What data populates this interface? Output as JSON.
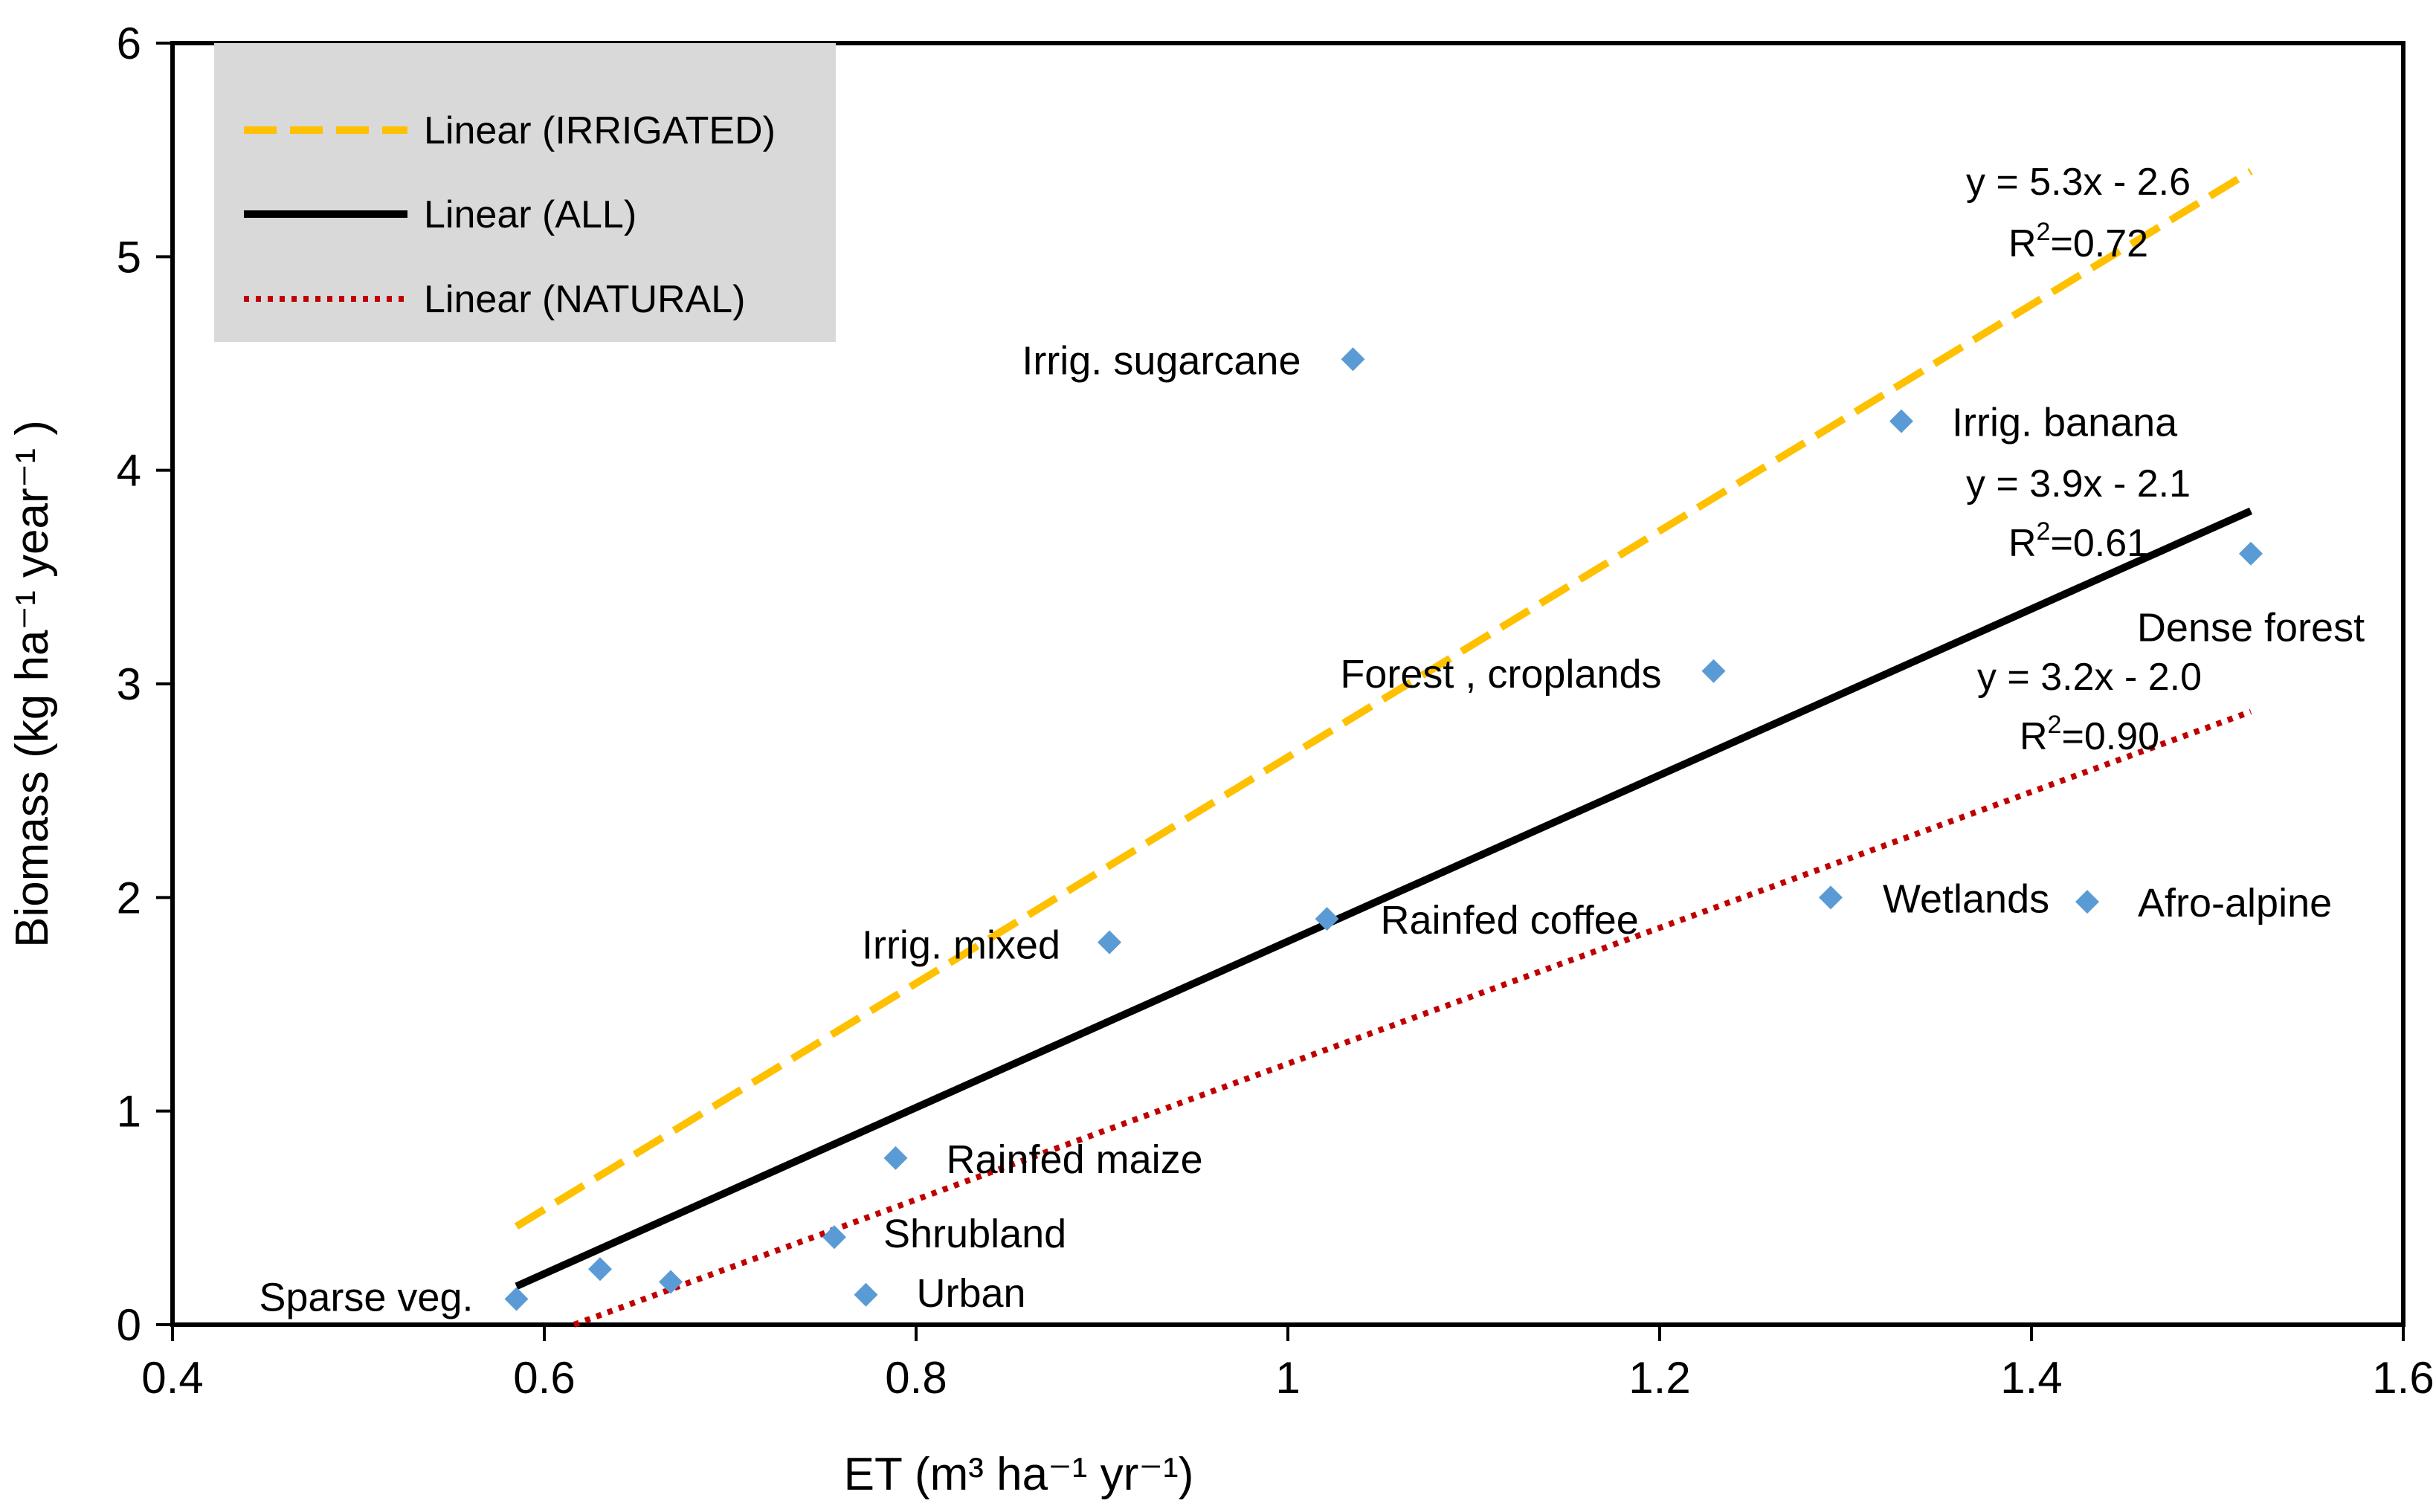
{
  "chart_data": {
    "type": "scatter",
    "title": "",
    "xlabel": "ET (m³ ha⁻¹ yr⁻¹)",
    "ylabel": "Biomass (kg ha⁻¹ year⁻¹ )",
    "xlim": [
      0.4,
      1.6
    ],
    "ylim": [
      0,
      6
    ],
    "xticks": [
      0.4,
      0.6,
      0.8,
      1,
      1.2,
      1.4,
      1.6
    ],
    "yticks": [
      0,
      1,
      2,
      3,
      4,
      5,
      6
    ],
    "xtick_labels": [
      "0.4",
      "0.6",
      "0.8",
      "1",
      "1.2",
      "1.4",
      "1.6"
    ],
    "ytick_labels": [
      "0",
      "1",
      "2",
      "3",
      "4",
      "5",
      "6"
    ],
    "marker_color": "#5b9bd5",
    "points": [
      {
        "label": "Sparse veg.",
        "x": 0.585,
        "y": 0.12
      },
      {
        "label": "",
        "x": 0.63,
        "y": 0.26
      },
      {
        "label": "",
        "x": 0.668,
        "y": 0.2
      },
      {
        "label": "Shrubland",
        "x": 0.756,
        "y": 0.41
      },
      {
        "label": "Urban",
        "x": 0.773,
        "y": 0.14
      },
      {
        "label": "Rainfed maize",
        "x": 0.789,
        "y": 0.78
      },
      {
        "label": "Irrig. mixed",
        "x": 0.904,
        "y": 1.79
      },
      {
        "label": "Rainfed coffee",
        "x": 1.021,
        "y": 1.9
      },
      {
        "label": "Irrig. sugarcane",
        "x": 1.035,
        "y": 4.52
      },
      {
        "label": "Forest , croplands",
        "x": 1.229,
        "y": 3.06
      },
      {
        "label": "Wetlands",
        "x": 1.292,
        "y": 2.0
      },
      {
        "label": "Irrig. banana",
        "x": 1.33,
        "y": 4.23
      },
      {
        "label": "Afro-alpine",
        "x": 1.43,
        "y": 1.98
      },
      {
        "label": "Dense forest",
        "x": 1.518,
        "y": 3.61
      }
    ],
    "trendlines": [
      {
        "name": "Linear (IRRIGATED)",
        "x": [
          0.585,
          1.518
        ],
        "y": [
          0.46,
          5.4
        ],
        "color": "#ffc000",
        "style": "dashed",
        "equation": "y = 5.3x - 2.6",
        "r2_label": "R",
        "r2_sup": "2",
        "r2_value": "=0.72"
      },
      {
        "name": "Linear (ALL)",
        "x": [
          0.585,
          1.518
        ],
        "y": [
          0.18,
          3.81
        ],
        "color": "#000000",
        "style": "solid",
        "equation": "y = 3.9x - 2.1",
        "r2_label": "R",
        "r2_sup": "2",
        "r2_value": "=0.61"
      },
      {
        "name": "Linear (NATURAL)",
        "x": [
          0.616,
          1.518
        ],
        "y": [
          0.0,
          2.87
        ],
        "color": "#c00000",
        "style": "dotted",
        "equation": "y = 3.2x - 2.0",
        "r2_label": "R",
        "r2_sup": "2",
        "r2_value": "=0.90"
      }
    ],
    "legend": {
      "position": "top-left",
      "background": "#d9d9d9"
    },
    "grid": false
  }
}
